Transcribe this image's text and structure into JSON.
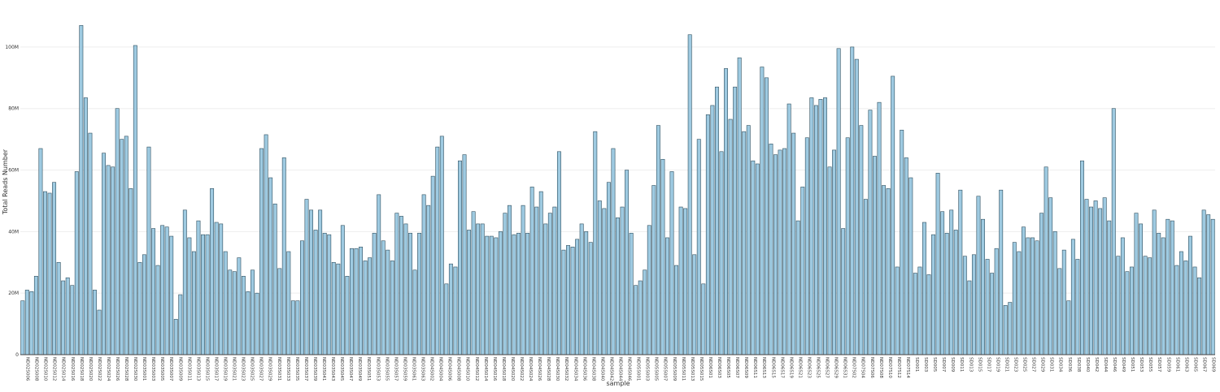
{
  "chart_data": {
    "type": "bar",
    "xlabel": "sample",
    "ylabel": "Total Reads Number",
    "ylim": [
      0,
      110000000
    ],
    "grid": "horizontal",
    "colors": {
      "bar_fill": "#9ecae1",
      "bar_stroke": "#2f4f5f",
      "grid": "#eeeeee",
      "axis": "#444444"
    },
    "y_ticks": [
      {
        "value": 0,
        "label": "0"
      },
      {
        "value": 20000000,
        "label": "20M"
      },
      {
        "value": 40000000,
        "label": "40M"
      },
      {
        "value": 60000000,
        "label": "60M"
      },
      {
        "value": 80000000,
        "label": "80M"
      },
      {
        "value": 100000000,
        "label": "100M"
      }
    ],
    "x_tick_labels": [
      "ND02S006",
      "ND02S008",
      "ND02S010",
      "ND02S012",
      "ND02S014",
      "ND02S016",
      "ND02S018",
      "ND02S020",
      "ND02S022",
      "ND02S024",
      "ND02S026",
      "ND02S028",
      "ND02S030",
      "ND03S001",
      "ND03S003",
      "ND03S005",
      "ND03S007",
      "ND03S009",
      "ND03S011",
      "ND03S013",
      "ND03S015",
      "ND03S017",
      "ND03S019",
      "ND03S021",
      "ND03S023",
      "ND03S025",
      "ND03S027",
      "ND03S029",
      "ND03S031",
      "ND03S033",
      "ND03S035",
      "ND03S037",
      "ND03S039",
      "ND03S041",
      "ND03S043",
      "ND03S045",
      "ND03S047",
      "ND03S049",
      "ND03S051",
      "ND03S053",
      "ND03S055",
      "ND03S057",
      "ND03S059",
      "ND03S061",
      "ND03S063",
      "ND04S002",
      "ND04S004",
      "ND04S006",
      "ND04S008",
      "ND04S010",
      "ND04S012",
      "ND04S014",
      "ND04S016",
      "ND04S018",
      "ND04S020",
      "ND04S022",
      "ND04S024",
      "ND04S026",
      "ND04S028",
      "ND04S030",
      "ND04S032",
      "ND04S034",
      "ND04S036",
      "ND04S038",
      "ND04S040",
      "ND04S042",
      "ND04S044",
      "ND04S046",
      "ND05S001",
      "ND05S003",
      "ND05S005",
      "ND05S007",
      "ND05S009",
      "ND05S011",
      "ND05S013",
      "ND05S015",
      "ND06S01",
      "ND06S03",
      "ND06S05",
      "ND06S07",
      "ND06S09",
      "ND06S11",
      "ND06S13",
      "ND06S15",
      "ND06S17",
      "ND06S19",
      "ND06S21",
      "ND06S23",
      "ND06S25",
      "ND06S27",
      "ND06S29",
      "ND06S31",
      "ND07S02",
      "ND07S04",
      "ND07S06",
      "ND07S08",
      "ND07S10",
      "ND07S12",
      "ND07S14",
      "SD001",
      "SD003",
      "SD005",
      "SD007",
      "SD009",
      "SD011",
      "SD013",
      "SD015",
      "SD017",
      "SD019",
      "SD021",
      "SD023",
      "SD025",
      "SD027",
      "SD029",
      "SD031",
      "SD034",
      "SD036",
      "SD038",
      "SD040",
      "SD042",
      "SD044",
      "SD046",
      "SD049",
      "SD051",
      "SD053",
      "SD055",
      "SD057",
      "SD059",
      "SD061",
      "SD063",
      "SD065",
      "SD067",
      "SD069"
    ],
    "values": [
      17.5,
      21,
      20.5,
      25.5,
      67,
      53,
      52.5,
      56,
      30,
      24,
      25,
      22.5,
      59.5,
      107,
      83.5,
      72,
      21,
      14.5,
      65.5,
      61.5,
      61,
      80,
      70,
      71,
      54,
      100.5,
      30,
      32.5,
      67.5,
      41,
      29,
      42,
      41.5,
      38.5,
      11.5,
      19.5,
      47,
      38,
      33.5,
      43.5,
      39,
      39,
      54,
      43,
      42.5,
      33.5,
      27.5,
      27,
      31.5,
      25.5,
      20.5,
      27.5,
      20,
      67,
      71.5,
      57.5,
      49,
      28,
      64,
      33.5,
      17.5,
      17.5,
      37,
      50.5,
      47,
      40.5,
      47,
      39.5,
      39,
      30,
      29.5,
      42,
      25.5,
      34.5,
      34.5,
      35,
      30.5,
      31.5,
      39.5,
      52,
      37,
      34,
      30.5,
      46,
      45,
      42.5,
      39.5,
      27.5,
      39.5,
      52,
      48.5,
      58,
      67.5,
      71,
      23,
      29.5,
      28.5,
      63,
      65,
      40.5,
      46.5,
      42.5,
      42.5,
      38.5,
      38.5,
      38,
      40,
      46,
      48.5,
      39,
      39.5,
      48.5,
      39.5,
      54.5,
      48,
      53,
      42.5,
      46,
      48,
      66,
      34,
      35.5,
      35,
      37.5,
      42.5,
      40,
      36.5,
      72.5,
      50,
      47.5,
      56,
      67,
      44.5,
      48,
      60,
      39.5,
      22.5,
      24,
      27.5,
      42,
      55,
      74.5,
      63.5,
      38,
      59.5,
      29,
      48,
      47.5,
      104,
      32.5,
      70,
      23,
      78,
      81,
      87,
      66,
      93,
      76.5,
      87,
      96.5,
      72.5,
      74.5,
      63,
      62,
      93.5,
      90,
      68.5,
      65,
      66.5,
      67,
      81.5,
      72,
      43.5,
      54.5,
      70.5,
      83.5,
      81,
      83,
      83.5,
      61,
      66.5,
      99.5,
      41,
      70.5,
      100,
      96,
      74.5,
      50.5,
      79.5,
      64.5,
      82,
      55,
      54,
      90.5,
      28.5,
      73,
      64,
      57.5,
      26.5,
      28.5,
      43,
      26,
      39,
      59,
      46.5,
      39.5,
      47,
      40.5,
      53.5,
      32,
      24,
      32.5,
      51.5,
      44,
      31,
      26.5,
      34.5,
      53.5,
      16,
      17,
      36.5,
      33.5,
      41.5,
      38,
      38,
      37,
      46,
      61,
      51,
      40,
      28,
      34,
      17.5,
      37.5,
      31,
      63,
      50.5,
      48,
      50,
      47.5,
      51,
      43.5,
      80,
      32,
      38,
      27,
      28.5,
      46,
      42.5,
      32,
      31.5,
      47,
      39.5,
      38,
      44,
      43.5,
      29,
      33.5,
      30.5,
      38.5,
      28.5,
      25,
      47,
      45.5,
      44
    ]
  }
}
